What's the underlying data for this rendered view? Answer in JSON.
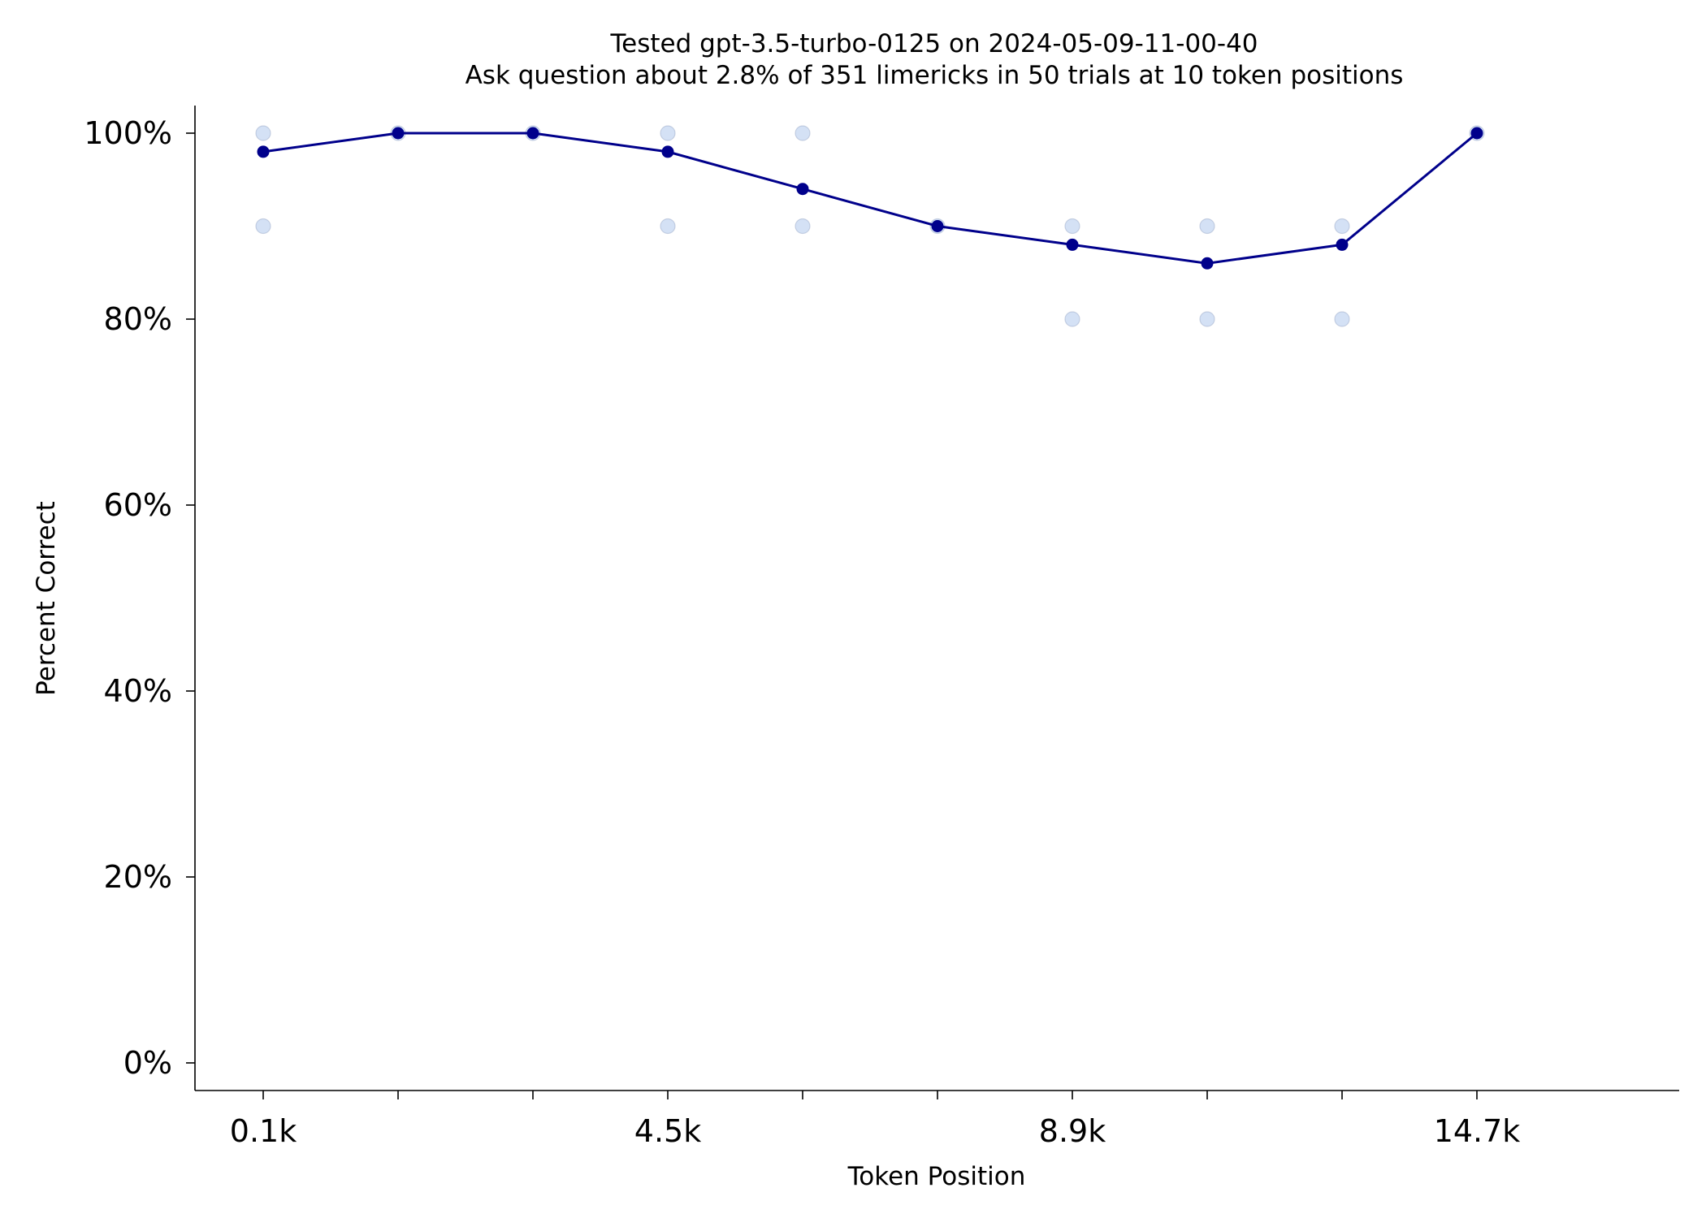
{
  "chart_data": {
    "type": "line",
    "title_line1": "Tested gpt-3.5-turbo-0125 on 2024-05-09-11-00-40",
    "title_line2": "Ask question about 2.8% of 351 limericks in 50 trials at 10 token positions",
    "xlabel": "Token Position",
    "ylabel": "Percent Correct",
    "ylim": [
      0,
      100
    ],
    "y_ticks": [
      0,
      20,
      40,
      60,
      80,
      100
    ],
    "y_tick_labels": [
      "0%",
      "20%",
      "40%",
      "60%",
      "80%",
      "100%"
    ],
    "x_positions": [
      1,
      2,
      3,
      4,
      5,
      6,
      7,
      8,
      9,
      10
    ],
    "x_tick_labels": [
      "0.1k",
      "",
      "",
      "4.5k",
      "",
      "",
      "8.9k",
      "",
      "",
      "14.7k"
    ],
    "grid": false,
    "series": [
      {
        "kind": "mean-line",
        "color": "#00008b",
        "values": [
          98,
          100,
          100,
          98,
          94,
          90,
          88,
          86,
          88,
          100
        ]
      },
      {
        "kind": "trial-points",
        "color": "#a9c4eb",
        "points": [
          {
            "x": 1,
            "y": 100
          },
          {
            "x": 1,
            "y": 90
          },
          {
            "x": 2,
            "y": 100
          },
          {
            "x": 3,
            "y": 100
          },
          {
            "x": 4,
            "y": 100
          },
          {
            "x": 4,
            "y": 90
          },
          {
            "x": 5,
            "y": 100
          },
          {
            "x": 5,
            "y": 90
          },
          {
            "x": 6,
            "y": 90
          },
          {
            "x": 7,
            "y": 90
          },
          {
            "x": 7,
            "y": 80
          },
          {
            "x": 8,
            "y": 90
          },
          {
            "x": 8,
            "y": 80
          },
          {
            "x": 9,
            "y": 90
          },
          {
            "x": 9,
            "y": 80
          },
          {
            "x": 10,
            "y": 100
          }
        ]
      }
    ]
  }
}
